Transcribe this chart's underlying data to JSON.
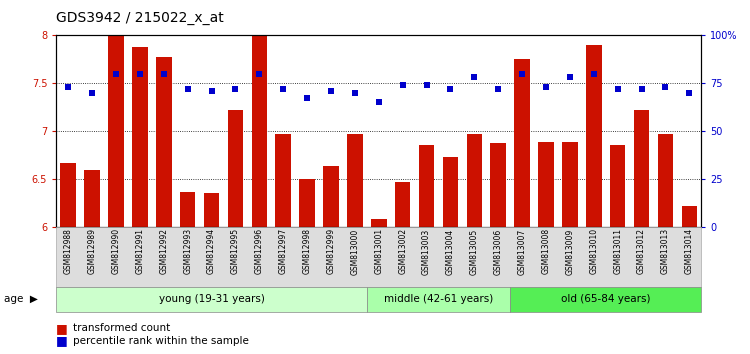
{
  "title": "GDS3942 / 215022_x_at",
  "samples": [
    "GSM812988",
    "GSM812989",
    "GSM812990",
    "GSM812991",
    "GSM812992",
    "GSM812993",
    "GSM812994",
    "GSM812995",
    "GSM812996",
    "GSM812997",
    "GSM812998",
    "GSM812999",
    "GSM813000",
    "GSM813001",
    "GSM813002",
    "GSM813003",
    "GSM813004",
    "GSM813005",
    "GSM813006",
    "GSM813007",
    "GSM813008",
    "GSM813009",
    "GSM813010",
    "GSM813011",
    "GSM813012",
    "GSM813013",
    "GSM813014"
  ],
  "bar_values": [
    6.67,
    6.59,
    8.0,
    7.88,
    7.77,
    6.36,
    6.35,
    7.22,
    8.0,
    6.97,
    6.5,
    6.63,
    6.97,
    6.08,
    6.47,
    6.85,
    6.73,
    6.97,
    6.87,
    7.75,
    6.88,
    6.88,
    7.9,
    6.85,
    7.22,
    6.97,
    6.22
  ],
  "percentile_values": [
    73,
    70,
    80,
    80,
    80,
    72,
    71,
    72,
    80,
    72,
    67,
    71,
    70,
    65,
    74,
    74,
    72,
    78,
    72,
    80,
    73,
    78,
    80,
    72,
    72,
    73,
    70
  ],
  "bar_color": "#CC1100",
  "dot_color": "#0000CC",
  "ylim_left": [
    6.0,
    8.0
  ],
  "ylim_right": [
    0,
    100
  ],
  "yticks_left": [
    6.0,
    6.5,
    7.0,
    7.5,
    8.0
  ],
  "yticks_right": [
    0,
    25,
    50,
    75,
    100
  ],
  "ytick_labels_right": [
    "0",
    "25",
    "50",
    "75",
    "100%"
  ],
  "group_labels": [
    "young (19-31 years)",
    "middle (42-61 years)",
    "old (65-84 years)"
  ],
  "group_ranges": [
    [
      0,
      13
    ],
    [
      13,
      19
    ],
    [
      19,
      27
    ]
  ],
  "group_colors": [
    "#ccffcc",
    "#aaffaa",
    "#55ee55"
  ],
  "age_label": "age",
  "legend_bar_label": "transformed count",
  "legend_dot_label": "percentile rank within the sample",
  "title_fontsize": 10,
  "tick_fontsize": 7,
  "label_fontsize": 6.5
}
